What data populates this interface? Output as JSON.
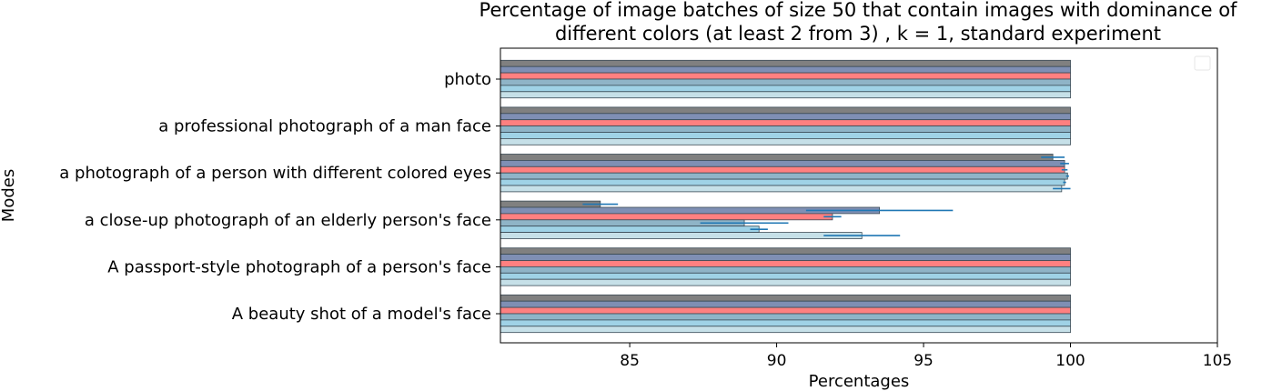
{
  "chart_data": {
    "type": "bar",
    "orientation": "horizontal",
    "title_lines": [
      "Percentage of image batches of size 50 that contain images with dominance of",
      "different colors (at least 2 from 3) , k = 1, standard experiment"
    ],
    "xlabel": "Percentages",
    "ylabel": "Modes",
    "xlim": [
      80.6,
      105
    ],
    "x_ticks": [
      85,
      90,
      95,
      100,
      105
    ],
    "categories": [
      "photo",
      "a professional photograph of a man face",
      "a photograph of a person with different colored eyes",
      "a close-up photograph of an elderly person's face",
      "A passport-style photograph of a person's face",
      "A beauty shot of a model's face"
    ],
    "series": [
      {
        "color": "#808080",
        "values": [
          100,
          100,
          99.4,
          84.0,
          100,
          100
        ],
        "errors": [
          0,
          0,
          0.4,
          0.6,
          0,
          0
        ]
      },
      {
        "color": "#7f8fb4",
        "values": [
          100,
          100,
          99.8,
          93.5,
          100,
          100
        ],
        "errors": [
          0,
          0,
          0.15,
          2.5,
          0,
          0
        ]
      },
      {
        "color": "#ff8080",
        "values": [
          100,
          100,
          99.8,
          91.9,
          100,
          100
        ],
        "errors": [
          0,
          0,
          0.1,
          0.3,
          0,
          0
        ]
      },
      {
        "color": "#8fb4c7",
        "values": [
          100,
          100,
          99.9,
          88.9,
          100,
          100
        ],
        "errors": [
          0,
          0,
          0.05,
          1.5,
          0,
          0
        ]
      },
      {
        "color": "#9fd2e6",
        "values": [
          100,
          100,
          99.8,
          89.4,
          100,
          100
        ],
        "errors": [
          0,
          0,
          0.05,
          0.3,
          0,
          0
        ]
      },
      {
        "color": "#c6e0e8",
        "values": [
          100,
          100,
          99.7,
          92.9,
          100,
          100
        ],
        "errors": [
          0,
          0,
          0.3,
          1.3,
          0,
          0
        ]
      }
    ],
    "legend": "top-right",
    "legend_entries": [],
    "grid": false,
    "error_bar_color": "#1f77b4"
  }
}
